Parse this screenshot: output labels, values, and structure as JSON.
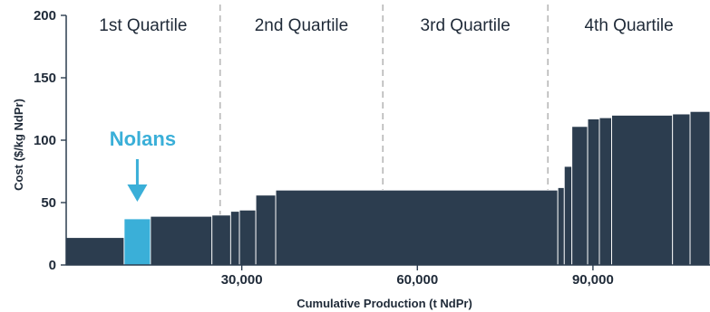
{
  "chart_data": {
    "type": "bar",
    "subtype": "cost-curve",
    "title": "",
    "xlabel": "Cumulative Production (t NdPr)",
    "ylabel": "Cost ($/kg NdPr)",
    "xlim": [
      0,
      110000
    ],
    "ylim": [
      0,
      200
    ],
    "x_ticks": [
      30000,
      60000,
      90000
    ],
    "x_tick_labels": [
      "30,000",
      "60,000",
      "90,000"
    ],
    "y_ticks": [
      0,
      50,
      100,
      150,
      200
    ],
    "y_tick_labels": [
      "0",
      "50",
      "100",
      "150",
      "200"
    ],
    "grid": false,
    "quartile_boundaries": [
      26300,
      54100,
      82300
    ],
    "quartile_labels": [
      "1st Quartile",
      "2nd Quartile",
      "3rd Quartile",
      "4th Quartile"
    ],
    "colors": {
      "default": "#2c3d4f",
      "highlight": "#3aafd8",
      "divider": "#b8b8b8",
      "text": "#1f2a38"
    },
    "segments": [
      {
        "x_start": 0,
        "x_end": 9900,
        "cost": 22
      },
      {
        "x_start": 9900,
        "x_end": 14400,
        "cost": 37,
        "highlight": true
      },
      {
        "x_start": 14400,
        "x_end": 24900,
        "cost": 39
      },
      {
        "x_start": 24900,
        "x_end": 28100,
        "cost": 40
      },
      {
        "x_start": 28100,
        "x_end": 29600,
        "cost": 43
      },
      {
        "x_start": 29600,
        "x_end": 32400,
        "cost": 44
      },
      {
        "x_start": 32400,
        "x_end": 35800,
        "cost": 56
      },
      {
        "x_start": 35800,
        "x_end": 84000,
        "cost": 60
      },
      {
        "x_start": 84000,
        "x_end": 85100,
        "cost": 62
      },
      {
        "x_start": 85100,
        "x_end": 86400,
        "cost": 79
      },
      {
        "x_start": 86400,
        "x_end": 89100,
        "cost": 111
      },
      {
        "x_start": 89100,
        "x_end": 91100,
        "cost": 117
      },
      {
        "x_start": 91100,
        "x_end": 93200,
        "cost": 118
      },
      {
        "x_start": 93200,
        "x_end": 103600,
        "cost": 120
      },
      {
        "x_start": 103600,
        "x_end": 106600,
        "cost": 121
      },
      {
        "x_start": 106600,
        "x_end": 110000,
        "cost": 123
      }
    ],
    "annotation": {
      "text": "Nolans",
      "color": "#3aafd8",
      "target_x": 12150
    }
  }
}
